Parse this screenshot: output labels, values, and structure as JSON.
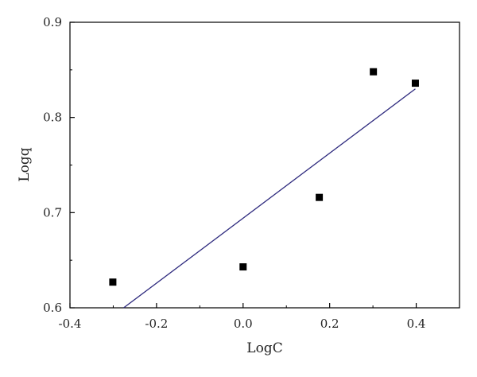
{
  "chart_data": {
    "type": "scatter",
    "xlabel": "LogC",
    "ylabel": "Logq",
    "xlim": [
      -0.4,
      0.5
    ],
    "ylim": [
      0.6,
      0.9
    ],
    "xticks": [
      -0.4,
      -0.2,
      0.0,
      0.2,
      0.4
    ],
    "xtick_labels": [
      "-0.4",
      "-0.2",
      "0.0",
      "0.2",
      "0.4"
    ],
    "yticks": [
      0.6,
      0.7,
      0.8,
      0.9
    ],
    "ytick_labels": [
      "0.6",
      "0.7",
      "0.8",
      "0.9"
    ],
    "grid": false,
    "series": [
      {
        "type": "scatter",
        "marker": "square",
        "color": "#000000",
        "x": [
          -0.301,
          0.0,
          0.176,
          0.301,
          0.398
        ],
        "y": [
          0.627,
          0.643,
          0.716,
          0.848,
          0.836
        ]
      },
      {
        "type": "line",
        "color": "#2e2a7e",
        "x": [
          -0.276,
          0.398
        ],
        "y": [
          0.6,
          0.83
        ]
      }
    ]
  }
}
